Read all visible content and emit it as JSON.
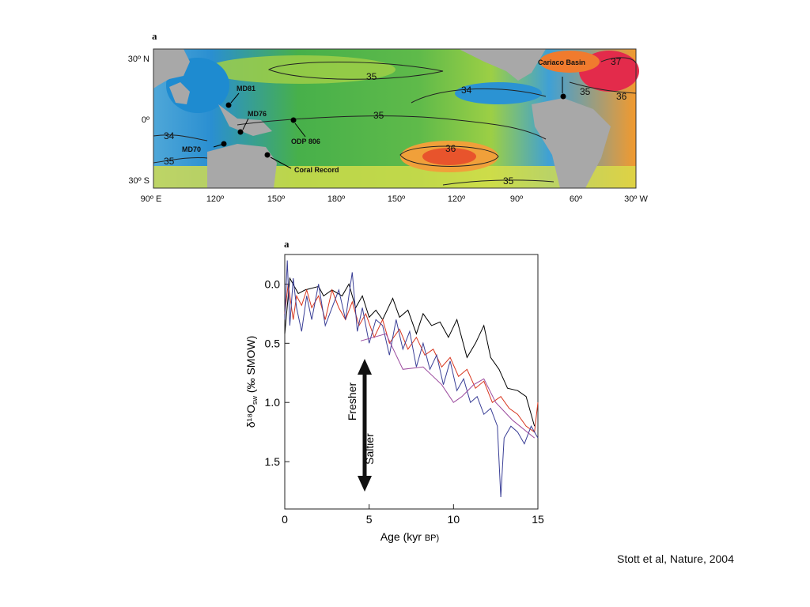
{
  "map_panel": {
    "panel_letter": "a",
    "lat_labels": [
      "30º N",
      "0º",
      "30º S"
    ],
    "lon_labels": [
      "90º E",
      "120º",
      "150º",
      "180º",
      "150º",
      "120º",
      "90º",
      "60º",
      "30º W"
    ],
    "contour_labels": [
      "34",
      "35",
      "34",
      "35",
      "36",
      "35",
      "36",
      "37",
      "35",
      "35"
    ],
    "sites": [
      {
        "name": "MD81"
      },
      {
        "name": "MD76"
      },
      {
        "name": "MD70"
      },
      {
        "name": "ODP 806"
      },
      {
        "name": "Coral Record"
      },
      {
        "name": "Cariaco Basin"
      }
    ],
    "colors": {
      "land": "#a8a8a8",
      "salty": "#e4232b",
      "mid": "#46b14b",
      "fresh": "#1d8fd2"
    }
  },
  "chart_panel": {
    "panel_letter": "a",
    "ylabel": "δ¹⁸O",
    "ylabel_sub": "sw",
    "ylabel_unit": " (‰ SMOW)",
    "xlabel": "Age (kyr",
    "xlabel_unit": "BP)",
    "arrow_up_label": "Fresher",
    "arrow_down_label": "Saltier"
  },
  "chart_data": {
    "type": "line",
    "xlabel": "Age (kyr BP)",
    "ylabel": "δ18Osw (‰ SMOW)",
    "xlim": [
      0,
      15
    ],
    "ylim": [
      1.9,
      -0.25
    ],
    "y_inverted": true,
    "x_ticks": [
      0,
      5,
      10,
      15
    ],
    "y_ticks": [
      0.0,
      0.5,
      1.0,
      1.5
    ],
    "x_tick_labels": [
      "0",
      "5",
      "10",
      "15"
    ],
    "y_tick_labels": [
      "0.0",
      "0.5",
      "1.0",
      "1.5"
    ],
    "series": [
      {
        "color": "#000000",
        "x": [
          0,
          0.3,
          0.8,
          1.2,
          2.0,
          2.3,
          2.8,
          3.4,
          3.8,
          4.2,
          4.6,
          5.0,
          5.4,
          5.8,
          6.4,
          6.8,
          7.3,
          7.8,
          8.2,
          8.7,
          9.2,
          9.7,
          10.2,
          10.8,
          11.3,
          11.8,
          12.2,
          12.7,
          13.2,
          13.8,
          14.3,
          14.8
        ],
        "y": [
          0.42,
          -0.05,
          0.08,
          0.05,
          0.02,
          0.1,
          0.05,
          0.1,
          0.0,
          0.2,
          0.1,
          0.28,
          0.22,
          0.3,
          0.12,
          0.28,
          0.22,
          0.42,
          0.25,
          0.35,
          0.32,
          0.45,
          0.3,
          0.62,
          0.5,
          0.35,
          0.62,
          0.72,
          0.88,
          0.9,
          0.95,
          1.2
        ]
      },
      {
        "color": "#d8361f",
        "x": [
          0,
          0.2,
          0.5,
          0.7,
          1.0,
          1.3,
          1.6,
          2.0,
          2.4,
          2.8,
          3.2,
          3.6,
          4.0,
          4.4,
          4.8,
          5.3,
          5.8,
          6.2,
          6.8,
          7.3,
          7.8,
          8.3,
          8.8,
          9.3,
          9.8,
          10.3,
          10.8,
          11.3,
          11.8,
          12.3,
          12.8,
          13.3,
          13.8,
          14.3,
          14.8,
          15.0
        ],
        "y": [
          0.25,
          0.0,
          0.3,
          0.1,
          0.18,
          0.05,
          0.2,
          0.1,
          0.3,
          0.05,
          0.2,
          0.3,
          0.15,
          0.35,
          0.25,
          0.45,
          0.3,
          0.5,
          0.38,
          0.55,
          0.45,
          0.6,
          0.55,
          0.7,
          0.62,
          0.78,
          0.72,
          0.88,
          0.82,
          1.0,
          0.95,
          1.05,
          1.1,
          1.2,
          1.25,
          1.0
        ]
      },
      {
        "color": "#3a3f96",
        "x": [
          0,
          0.15,
          0.3,
          0.5,
          0.7,
          1.0,
          1.3,
          1.6,
          2.0,
          2.4,
          2.8,
          3.2,
          3.6,
          4.0,
          4.3,
          4.6,
          5.0,
          5.4,
          5.8,
          6.2,
          6.6,
          7.0,
          7.4,
          7.8,
          8.2,
          8.6,
          9.0,
          9.4,
          9.8,
          10.2,
          10.6,
          11.0,
          11.4,
          11.8,
          12.2,
          12.6,
          12.8,
          13.0,
          13.4,
          13.8,
          14.2,
          14.6,
          15.0
        ],
        "y": [
          0.3,
          -0.2,
          0.35,
          -0.05,
          0.2,
          0.4,
          0.1,
          0.3,
          0.0,
          0.35,
          0.2,
          0.05,
          0.3,
          -0.1,
          0.4,
          0.2,
          0.5,
          0.3,
          0.35,
          0.6,
          0.3,
          0.55,
          0.4,
          0.7,
          0.5,
          0.72,
          0.6,
          0.85,
          0.65,
          0.9,
          0.8,
          1.0,
          0.95,
          1.1,
          1.05,
          1.2,
          1.8,
          1.3,
          1.2,
          1.25,
          1.35,
          1.2,
          1.3
        ]
      },
      {
        "color": "#9b4b9e",
        "x": [
          4.5,
          6.0,
          7.0,
          8.2,
          9.3,
          10.0,
          10.5,
          11.2,
          11.8,
          12.5,
          13.5,
          14.8
        ],
        "y": [
          0.48,
          0.42,
          0.72,
          0.7,
          0.85,
          1.0,
          0.95,
          0.85,
          0.8,
          1.0,
          1.15,
          1.3
        ]
      }
    ]
  },
  "citation": "Stott et al, Nature, 2004"
}
